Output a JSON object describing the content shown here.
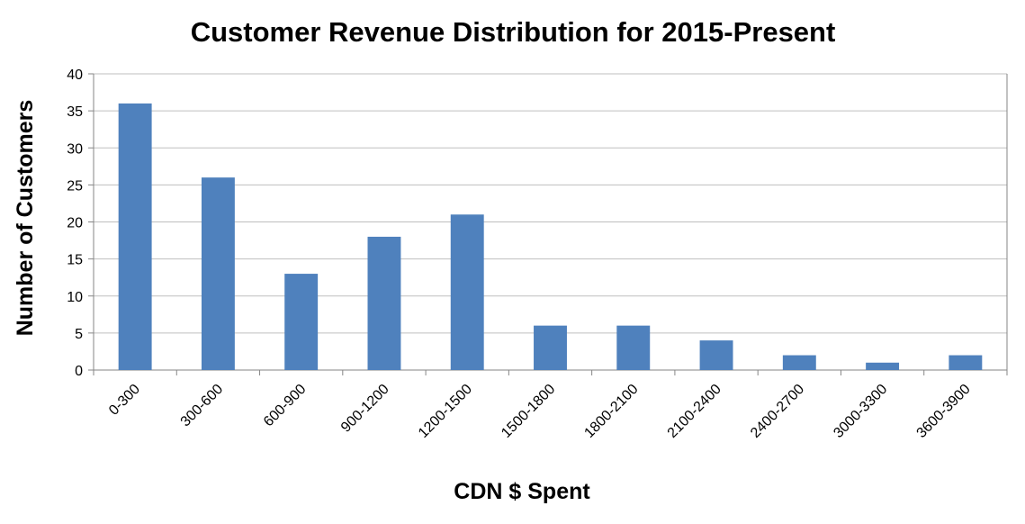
{
  "chart_data": {
    "type": "bar",
    "title": "Customer Revenue Distribution for 2015-Present",
    "xlabel": "CDN $ Spent",
    "ylabel": "Number of Customers",
    "categories": [
      "0-300",
      "300-600",
      "600-900",
      "900-1200",
      "1200-1500",
      "1500-1800",
      "1800-2100",
      "2100-2400",
      "2400-2700",
      "3000-3300",
      "3600-3900"
    ],
    "values": [
      36,
      26,
      13,
      18,
      21,
      6,
      6,
      4,
      2,
      1,
      2
    ],
    "ylim": [
      0,
      40
    ],
    "yticks": [
      0,
      5,
      10,
      15,
      20,
      25,
      30,
      35,
      40
    ],
    "grid": true,
    "legend": "none",
    "bar_color": "#4f81bd"
  }
}
